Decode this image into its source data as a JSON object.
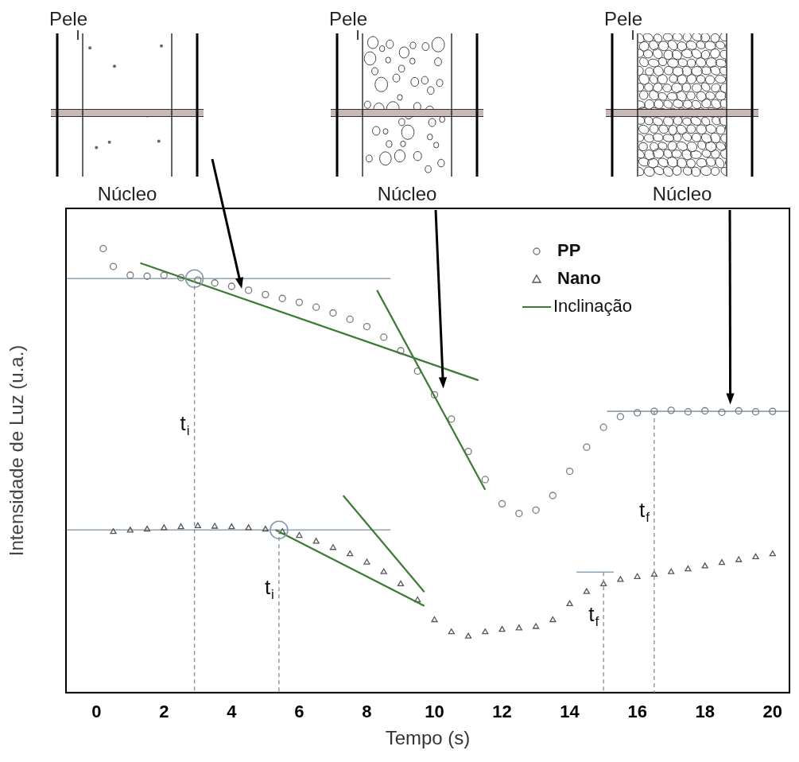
{
  "chart_data": {
    "type": "scatter",
    "x_label": "Tempo (s)",
    "y_label": "Intensidade de Luz (u.a.)",
    "xlim": [
      -0.9,
      20.5
    ],
    "xticks": [
      0,
      2,
      4,
      6,
      8,
      10,
      12,
      14,
      16,
      18,
      20
    ],
    "ylim": [
      0,
      100
    ],
    "tick_labels": "x",
    "grid": false,
    "legend": "upper right",
    "series": [
      {
        "name": "PP",
        "color": "#7a7a7a",
        "marker": "circle",
        "x": [
          0.2,
          0.5,
          1.0,
          1.5,
          2.0,
          2.5,
          3.0,
          3.5,
          4.0,
          4.5,
          5.0,
          5.5,
          6.0,
          6.5,
          7.0,
          7.5,
          8.0,
          8.5,
          9.0,
          9.5,
          10.0,
          10.5,
          11.0,
          11.5,
          12.0,
          12.5,
          13.0,
          13.5,
          14.0,
          14.5,
          15.0,
          15.5,
          16.0,
          16.5,
          17.0,
          17.5,
          18.0,
          18.5,
          19.0,
          19.5,
          20.0
        ],
        "values": [
          91.7,
          88.0,
          86.2,
          86.0,
          86.2,
          85.7,
          85.2,
          84.6,
          83.9,
          83.1,
          82.2,
          81.4,
          80.6,
          79.6,
          78.4,
          77.1,
          75.6,
          73.4,
          70.6,
          66.4,
          61.5,
          56.5,
          49.8,
          44.0,
          39.0,
          37.0,
          37.7,
          40.7,
          45.7,
          50.7,
          54.8,
          57.0,
          57.8,
          58.1,
          58.3,
          58.0,
          58.2,
          57.9,
          58.2,
          58.0,
          58.1
        ]
      },
      {
        "name": "Nano",
        "color": "#555555",
        "marker": "triangle",
        "x": [
          0.5,
          1.0,
          1.5,
          2.0,
          2.5,
          3.0,
          3.5,
          4.0,
          4.5,
          5.0,
          5.5,
          6.0,
          6.5,
          7.0,
          7.5,
          8.0,
          8.5,
          9.0,
          9.5,
          10.0,
          10.5,
          11.0,
          11.5,
          12.0,
          12.5,
          13.0,
          13.5,
          14.0,
          14.5,
          15.0,
          15.5,
          16.0,
          16.5,
          17.0,
          17.5,
          18.0,
          18.5,
          19.0,
          19.5,
          20.0
        ],
        "values": [
          33.2,
          33.5,
          33.7,
          34.0,
          34.2,
          34.4,
          34.3,
          34.2,
          34.0,
          33.7,
          33.2,
          32.4,
          31.2,
          29.9,
          28.6,
          26.9,
          24.9,
          22.4,
          19.1,
          15.0,
          12.5,
          11.6,
          12.5,
          13.0,
          13.3,
          13.6,
          15.0,
          18.3,
          20.8,
          22.4,
          23.3,
          23.9,
          24.4,
          24.9,
          25.5,
          26.1,
          26.8,
          27.4,
          28.0,
          28.6
        ]
      },
      {
        "name": "Inclinação",
        "type": "line",
        "color": "#3d7a36",
        "line_style": "solid",
        "segments": [
          {
            "x": [
              1.3,
              11.3
            ],
            "values": [
              88.7,
              64.5
            ]
          },
          {
            "x": [
              8.3,
              11.5
            ],
            "values": [
              83.1,
              41.9
            ]
          },
          {
            "x": [
              5.3,
              9.7
            ],
            "values": [
              33.6,
              17.9
            ]
          },
          {
            "x": [
              7.3,
              9.7
            ],
            "values": [
              40.7,
              20.8
            ]
          }
        ]
      }
    ],
    "reference_lines": [
      {
        "color": "#8fa3b3",
        "x": [
          -0.9,
          8.7
        ],
        "values": [
          85.5,
          85.5
        ]
      },
      {
        "color": "#8fa3b3",
        "x": [
          -0.9,
          8.7
        ],
        "values": [
          33.6,
          33.6
        ]
      },
      {
        "color": "#8fa3b3",
        "x": [
          15.1,
          20.5
        ],
        "values": [
          58.1,
          58.1
        ]
      },
      {
        "color": "#8fa3b3",
        "x": [
          14.2,
          15.3
        ],
        "values": [
          24.9,
          24.9
        ]
      }
    ],
    "highlights": [
      {
        "x": 2.9,
        "y": 85.5
      },
      {
        "x": 5.4,
        "y": 33.6
      }
    ],
    "time_markers": [
      {
        "series": "PP",
        "label": "t",
        "subscript": "i",
        "x": 2.9,
        "y": 85.5
      },
      {
        "series": "Nano",
        "label": "t",
        "subscript": "i",
        "x": 5.4,
        "y": 33.6
      },
      {
        "series": "PP",
        "label": "t",
        "subscript": "f",
        "x": 16.5,
        "y": 58.1
      },
      {
        "series": "Nano",
        "label": "t",
        "subscript": "f",
        "x": 15.0,
        "y": 24.9
      }
    ],
    "diagrams": [
      {
        "top_label": "Pele",
        "bottom_label": "Núcleo",
        "arrow_to": {
          "x": 4.3,
          "y": 83.4
        }
      },
      {
        "top_label": "Pele",
        "bottom_label": "Núcleo",
        "arrow_to": {
          "x": 10.26,
          "y": 62.8
        }
      },
      {
        "top_label": "Pele",
        "bottom_label": "Núcleo",
        "arrow_to": {
          "x": 18.75,
          "y": 59.5
        }
      }
    ]
  }
}
